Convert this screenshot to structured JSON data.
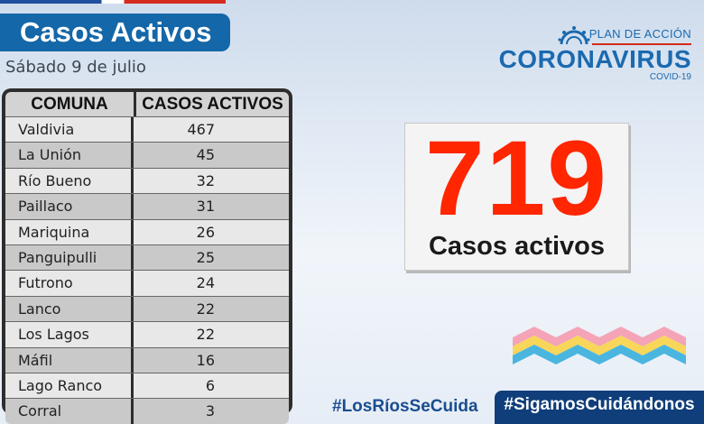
{
  "header": {
    "title": "Casos Activos",
    "date": "Sábado 9 de julio"
  },
  "logo": {
    "plan": "PLAN DE ACCIÓN",
    "main": "CORONAVIRUS",
    "sub": "COVID-19",
    "icon": "virus-icon"
  },
  "table": {
    "headers": [
      "COMUNA",
      "CASOS ACTIVOS"
    ],
    "rows": [
      {
        "comuna": "Valdivia",
        "casos": "467"
      },
      {
        "comuna": "La Unión",
        "casos": "45"
      },
      {
        "comuna": "Río Bueno",
        "casos": "32"
      },
      {
        "comuna": "Paillaco",
        "casos": "31"
      },
      {
        "comuna": "Mariquina",
        "casos": "26"
      },
      {
        "comuna": "Panguipulli",
        "casos": "25"
      },
      {
        "comuna": "Futrono",
        "casos": "24"
      },
      {
        "comuna": "Lanco",
        "casos": "22"
      },
      {
        "comuna": "Los Lagos",
        "casos": "22"
      },
      {
        "comuna": "Máfil",
        "casos": "16"
      },
      {
        "comuna": "Lago Ranco",
        "casos": "6"
      },
      {
        "comuna": "Corral",
        "casos": "3"
      }
    ]
  },
  "total": {
    "value": "719",
    "label": "Casos activos"
  },
  "hashtags": {
    "primary": "#LosRíosSeCuida",
    "secondary": "#SigamosCuidándonos"
  },
  "colors": {
    "banner": "#1467a8",
    "total_number": "#ff2600",
    "brand_blue": "#1a6ab0"
  }
}
